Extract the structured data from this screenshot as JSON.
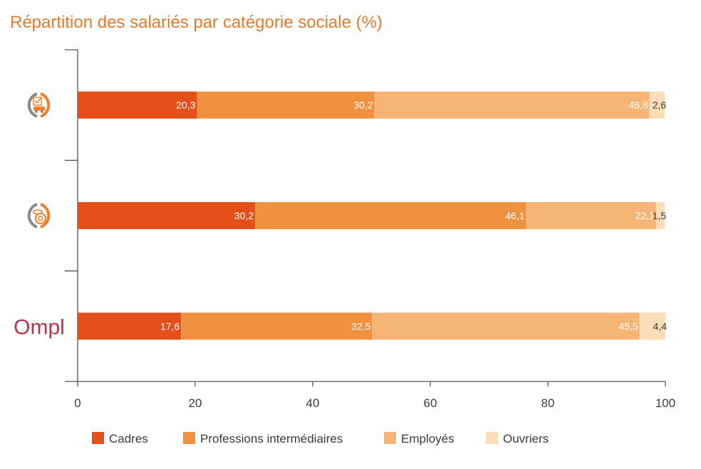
{
  "chart_data": {
    "type": "bar",
    "orientation": "horizontal",
    "stacked": true,
    "title": "Répartition des salariés par catégorie sociale (%)",
    "xlim": [
      0,
      100
    ],
    "xticks": [
      "0",
      "20",
      "40",
      "60",
      "80",
      "100"
    ],
    "categories": [
      {
        "icon": "checklist-car-icon"
      },
      {
        "icon": "coins-icon"
      },
      {
        "label": "Ompl"
      }
    ],
    "series": [
      {
        "name": "Cadres",
        "color": "#e5501a",
        "values": [
          20.3,
          30.2,
          17.6
        ],
        "labels": [
          "20,3",
          "30,2",
          "17,6"
        ]
      },
      {
        "name": "Professions intermédiaires",
        "color": "#f0913f",
        "values": [
          30.2,
          46.1,
          32.5
        ],
        "labels": [
          "30,2",
          "46,1",
          "32,5"
        ]
      },
      {
        "name": "Employés",
        "color": "#f6b575",
        "values": [
          46.8,
          22.1,
          45.5
        ],
        "labels": [
          "46,8",
          "22,1",
          "45,5"
        ]
      },
      {
        "name": "Ouvriers",
        "color": "#fbddb9",
        "values": [
          2.6,
          1.5,
          4.4
        ],
        "labels": [
          "2,6",
          "1,5",
          "4,4"
        ]
      }
    ],
    "legend_position": "bottom",
    "grid": false
  }
}
